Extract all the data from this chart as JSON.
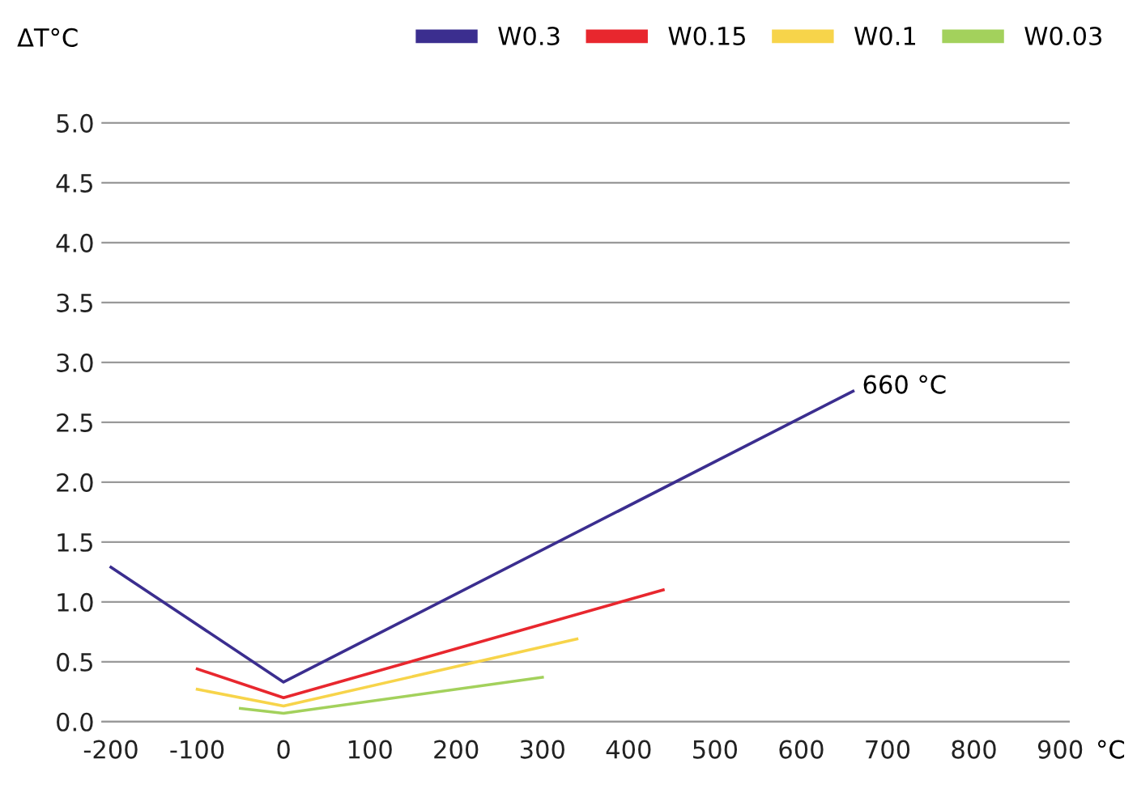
{
  "chart_data": {
    "type": "line",
    "xlabel": "°C",
    "ylabel": "ΔT°C",
    "series": [
      {
        "name": "W0.3",
        "color": "#3b2e8f",
        "x": [
          -200,
          0,
          660
        ],
        "values": [
          1.29,
          0.33,
          2.76
        ]
      },
      {
        "name": "W0.15",
        "color": "#e8272e",
        "x": [
          -100,
          0,
          440
        ],
        "values": [
          0.44,
          0.2,
          1.1
        ]
      },
      {
        "name": "W0.1",
        "color": "#f7d44a",
        "x": [
          -100,
          0,
          340
        ],
        "values": [
          0.27,
          0.13,
          0.69
        ]
      },
      {
        "name": "W0.03",
        "color": "#a3d15c",
        "x": [
          -50,
          0,
          300
        ],
        "values": [
          0.11,
          0.07,
          0.37
        ]
      }
    ],
    "xlim": [
      -210,
      910
    ],
    "xticks": [
      -200,
      -100,
      0,
      100,
      200,
      300,
      400,
      500,
      600,
      700,
      800,
      900
    ],
    "ylim": [
      0,
      5
    ],
    "yticks": [
      {
        "value": 0,
        "label": "0.0"
      },
      {
        "value": 0.5,
        "label": "0.5"
      },
      {
        "value": 1,
        "label": "1.0"
      },
      {
        "value": 1.5,
        "label": "1.5"
      },
      {
        "value": 2,
        "label": "2.0"
      },
      {
        "value": 2.5,
        "label": "2.5"
      },
      {
        "value": 3,
        "label": "3.0"
      },
      {
        "value": 3.5,
        "label": "3.5"
      },
      {
        "value": 4,
        "label": "4.0"
      },
      {
        "value": 4.5,
        "label": "4.5"
      },
      {
        "value": 5,
        "label": "5.0"
      }
    ],
    "annotations": [
      {
        "text": "660 °C",
        "x": 660,
        "y": 2.76
      }
    ],
    "grid": "y",
    "legend": "top right",
    "marker": "none",
    "line_style": "solid"
  }
}
